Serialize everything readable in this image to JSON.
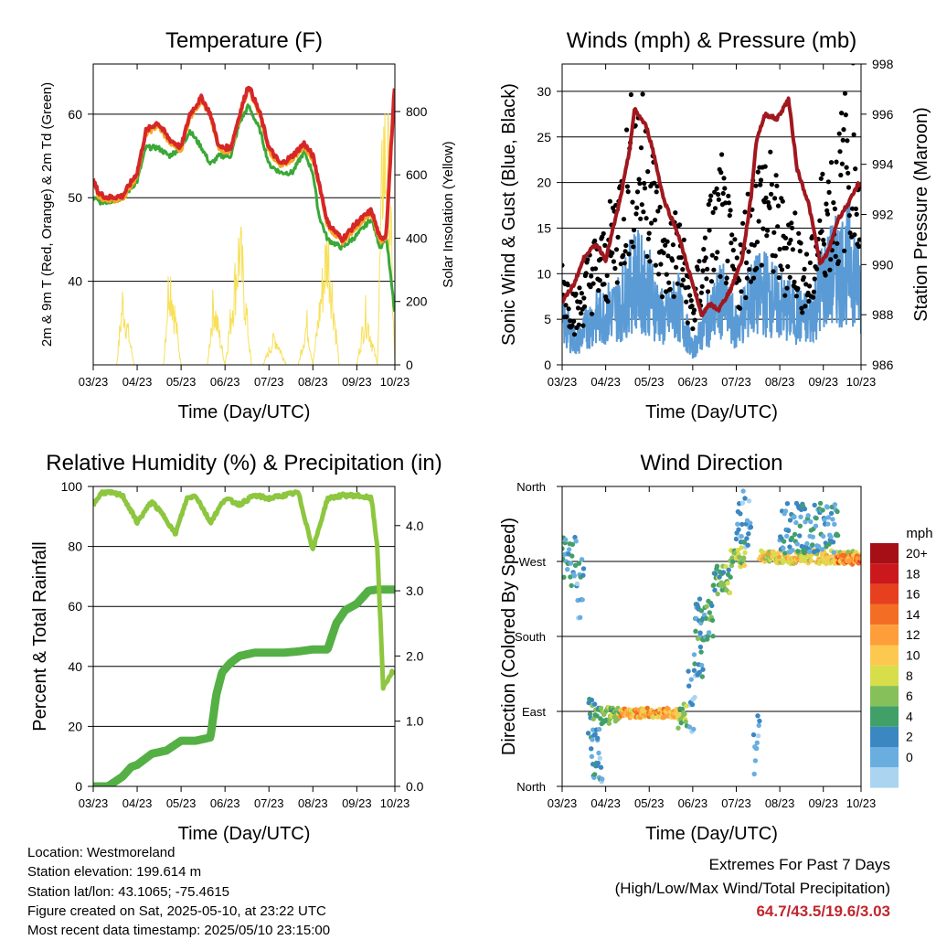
{
  "chart_data": [
    {
      "type": "line",
      "title": "Temperature (F)",
      "xlabel": "Time (Day/UTC)",
      "ylabel": "2m & 9m T (Red, Orange) & 2m Td (Green)",
      "y2label": "Solar Insolation (Yellow)",
      "x_ticks": [
        "03/23",
        "04/23",
        "05/23",
        "06/23",
        "07/23",
        "08/23",
        "09/23",
        "10/23"
      ],
      "ylim": [
        30,
        66
      ],
      "y_ticks": [
        40,
        50,
        60
      ],
      "y2lim": [
        0,
        950
      ],
      "y2_ticks": [
        0,
        200,
        400,
        600,
        800
      ],
      "grid": true,
      "series": [
        {
          "axis": "left",
          "color": "#d62728",
          "x": [
            0,
            0.2,
            0.5,
            1,
            1.5,
            1.8,
            2.2,
            2.6,
            3,
            3.3,
            3.7,
            4,
            4.3,
            4.7,
            5,
            5.3,
            5.7,
            6,
            6.4,
            6.8,
            7.2,
            7.5,
            7.7,
            8,
            8.5,
            9,
            9.5,
            9.8,
            10,
            10.3
          ],
          "values": [
            52,
            50.5,
            50,
            50.2,
            53,
            58,
            59,
            57,
            56,
            60,
            62,
            60,
            56,
            56,
            60,
            63.5,
            60,
            56,
            54,
            55,
            56.5,
            55,
            52,
            47,
            45,
            47,
            48.5,
            45,
            45.5,
            64
          ]
        },
        {
          "axis": "left",
          "color": "#f5a623",
          "x": [
            0,
            0.2,
            0.5,
            1,
            1.5,
            1.8,
            2.2,
            2.6,
            3,
            3.3,
            3.7,
            4,
            4.3,
            4.7,
            5,
            5.3,
            5.7,
            6,
            6.4,
            6.8,
            7.2,
            7.5,
            7.7,
            8,
            8.5,
            9,
            9.5,
            9.8,
            10,
            10.3
          ],
          "values": [
            51.6,
            50.1,
            49.6,
            49.8,
            52.6,
            57.6,
            58.6,
            56.6,
            55.6,
            59.6,
            61.6,
            59.6,
            55.6,
            55.6,
            59.6,
            63.1,
            59.6,
            55.6,
            53.6,
            54.6,
            56.1,
            54.6,
            51.6,
            46.6,
            44.6,
            46.6,
            48.1,
            44.6,
            45.1,
            63.6
          ]
        },
        {
          "axis": "left",
          "color": "#3aa838",
          "x": [
            0,
            0.2,
            0.5,
            1,
            1.5,
            1.8,
            2.2,
            2.6,
            3,
            3.3,
            3.7,
            4,
            4.3,
            4.7,
            5,
            5.3,
            5.7,
            6,
            6.4,
            6.8,
            7.2,
            7.5,
            7.7,
            8,
            8.5,
            9,
            9.5,
            9.8,
            10,
            10.3
          ],
          "values": [
            50,
            49.5,
            49.5,
            50,
            52,
            56,
            56,
            55,
            56,
            58,
            56,
            54,
            55,
            55,
            59,
            61,
            58,
            54,
            53,
            53,
            55.5,
            53,
            48,
            45,
            44,
            45.5,
            47.5,
            44,
            45.5,
            36
          ]
        },
        {
          "axis": "right",
          "color": "#f7e05a",
          "x": [
            0.8,
            1.0,
            1.4,
            2.4,
            2.6,
            3.0,
            3.9,
            4.1,
            4.5,
            5.0,
            5.4,
            5.8,
            6.2,
            6.6,
            7.0,
            7.3,
            7.5,
            8.0,
            8.4,
            9.0,
            9.3,
            9.7,
            9.9,
            10.1,
            10.3
          ],
          "values": [
            0,
            270,
            0,
            0,
            400,
            0,
            0,
            270,
            0,
            520,
            0,
            0,
            120,
            0,
            0,
            180,
            0,
            520,
            0,
            0,
            220,
            0,
            950,
            800,
            0
          ]
        }
      ]
    },
    {
      "type": "line",
      "title": "Winds (mph) & Pressure (mb)",
      "xlabel": "Time (Day/UTC)",
      "ylabel": "Sonic Wind & Gust (Blue, Black)",
      "y2label": "Station Pressure (Maroon)",
      "x_ticks": [
        "03/23",
        "04/23",
        "05/23",
        "06/23",
        "07/23",
        "08/23",
        "09/23",
        "10/23"
      ],
      "ylim": [
        0,
        33
      ],
      "y_ticks": [
        0,
        5,
        10,
        15,
        20,
        25,
        30
      ],
      "y2lim": [
        986,
        998
      ],
      "y2_ticks": [
        986,
        988,
        990,
        992,
        994,
        996,
        998
      ],
      "grid": true,
      "series": [
        {
          "axis": "right",
          "color": "#a0181e",
          "x": [
            0,
            0.4,
            0.8,
            1.2,
            1.5,
            2.0,
            2.3,
            2.5,
            2.9,
            3.1,
            3.5,
            4.0,
            4.4,
            4.8,
            5.1,
            5.4,
            5.8,
            6.2,
            6.5,
            6.7,
            7.0,
            7.4,
            7.8,
            8.1,
            8.5,
            8.9,
            9.2,
            9.5,
            9.9,
            10.2
          ],
          "values": [
            988.5,
            989.2,
            990.4,
            990.8,
            990.2,
            992.6,
            994.4,
            996.2,
            995.5,
            994.7,
            992.6,
            991.2,
            989.6,
            988.0,
            988.4,
            988.2,
            989.0,
            990.2,
            992.6,
            995.0,
            996.0,
            995.8,
            996.6,
            993.8,
            992.4,
            990.0,
            990.6,
            991.8,
            992.5,
            993.2
          ]
        },
        {
          "axis": "left",
          "color": "#5b9bd5",
          "x": [
            0,
            0.5,
            1,
            1.5,
            2,
            2.5,
            3,
            3.5,
            4,
            4.5,
            5,
            5.5,
            6,
            6.5,
            7,
            7.5,
            8,
            8.5,
            9,
            9.5,
            10,
            10.3
          ],
          "values": [
            6,
            3,
            6,
            7,
            8,
            12,
            10,
            6,
            8,
            2,
            6,
            9,
            5,
            9,
            10,
            8,
            7,
            6,
            11,
            13,
            14,
            9
          ]
        },
        {
          "axis": "left",
          "color": "#000000",
          "marker": "dot",
          "x": [
            0,
            0.5,
            1,
            1.5,
            2,
            2.5,
            3,
            3.5,
            4,
            4.5,
            5,
            5.5,
            6,
            6.5,
            7,
            7.5,
            8,
            8.5,
            9,
            9.5,
            10,
            10.3
          ],
          "values": [
            10,
            6,
            11,
            12,
            18,
            25,
            22,
            12,
            14,
            6,
            14,
            18,
            10,
            17,
            20,
            15,
            14,
            9,
            18,
            20,
            28,
            16
          ]
        }
      ]
    },
    {
      "type": "line",
      "title": "Relative Humidity (%) & Precipitation (in)",
      "xlabel": "Time (Day/UTC)",
      "ylabel": "Percent & Total Rainfall",
      "x_ticks": [
        "03/23",
        "04/23",
        "05/23",
        "06/23",
        "07/23",
        "08/23",
        "09/23",
        "10/23"
      ],
      "ylim": [
        0,
        100
      ],
      "y_ticks": [
        0,
        20,
        40,
        60,
        80,
        100
      ],
      "y2lim": [
        0,
        4.6
      ],
      "y2_ticks": [
        "0.0",
        "1.0",
        "2.0",
        "3.0",
        "4.0"
      ],
      "grid": true,
      "series": [
        {
          "axis": "left",
          "color": "#8dc63f",
          "x": [
            0,
            0.3,
            0.5,
            1,
            1.5,
            2,
            2.5,
            2.8,
            3.2,
            3.5,
            4,
            4.5,
            5,
            5.5,
            6,
            6.5,
            7,
            7.5,
            8,
            8.5,
            9,
            9.5,
            9.7,
            9.9,
            10.2
          ],
          "values": [
            94,
            98,
            98,
            97,
            88,
            95,
            89,
            84,
            96,
            97,
            88,
            96,
            94,
            97,
            96,
            97,
            98,
            79,
            96,
            97,
            97,
            96,
            80,
            33,
            38
          ]
        },
        {
          "axis": "right",
          "color": "#54b045",
          "x": [
            0,
            0.5,
            1,
            1.3,
            1.5,
            2,
            2.5,
            3,
            3.5,
            4,
            4.2,
            4.4,
            4.7,
            5,
            5.5,
            6,
            6.5,
            7,
            7.5,
            8,
            8.3,
            8.6,
            9,
            9.4,
            9.7,
            10.3
          ],
          "values": [
            0,
            0,
            0.15,
            0.3,
            0.33,
            0.5,
            0.55,
            0.7,
            0.7,
            0.75,
            1.4,
            1.75,
            1.9,
            2.0,
            2.05,
            2.05,
            2.05,
            2.07,
            2.1,
            2.1,
            2.5,
            2.7,
            2.8,
            3.0,
            3.02,
            3.02
          ]
        }
      ]
    },
    {
      "type": "scatter",
      "title": "Wind Direction",
      "xlabel": "Time (Day/UTC)",
      "ylabel": "Direction (Colored By Speed)",
      "x_ticks": [
        "03/23",
        "04/23",
        "05/23",
        "06/23",
        "07/23",
        "08/23",
        "09/23",
        "10/23"
      ],
      "y_ticks": [
        "North",
        "East",
        "South",
        "West",
        "North"
      ],
      "ylim": [
        0,
        360
      ],
      "grid": true,
      "legend": {
        "title": "mph",
        "labels": [
          "20+",
          "18",
          "16",
          "14",
          "12",
          "10",
          "8",
          "6",
          "4",
          "2",
          "0"
        ],
        "colors": [
          "#a50f15",
          "#cb181d",
          "#e6401f",
          "#f46d24",
          "#fd9e3a",
          "#fdc850",
          "#d8dd4a",
          "#86c05a",
          "#41a068",
          "#3b87c2",
          "#6aaee0",
          "#aad4f0"
        ]
      }
    }
  ],
  "info": {
    "location": "Location: Westmoreland",
    "elevation": "Station elevation: 199.614 m",
    "latlon": "Station lat/lon: 43.1065; -75.4615",
    "created": "Figure created on Sat, 2025-05-10, at 23:22 UTC",
    "recent": "Most recent data timestamp: 2025/05/10 23:15:00"
  },
  "extremes": {
    "title": "Extremes For Past 7 Days",
    "subtitle": "(High/Low/Max Wind/Total Precipitation)",
    "values": "64.7/43.5/19.6/3.03"
  }
}
